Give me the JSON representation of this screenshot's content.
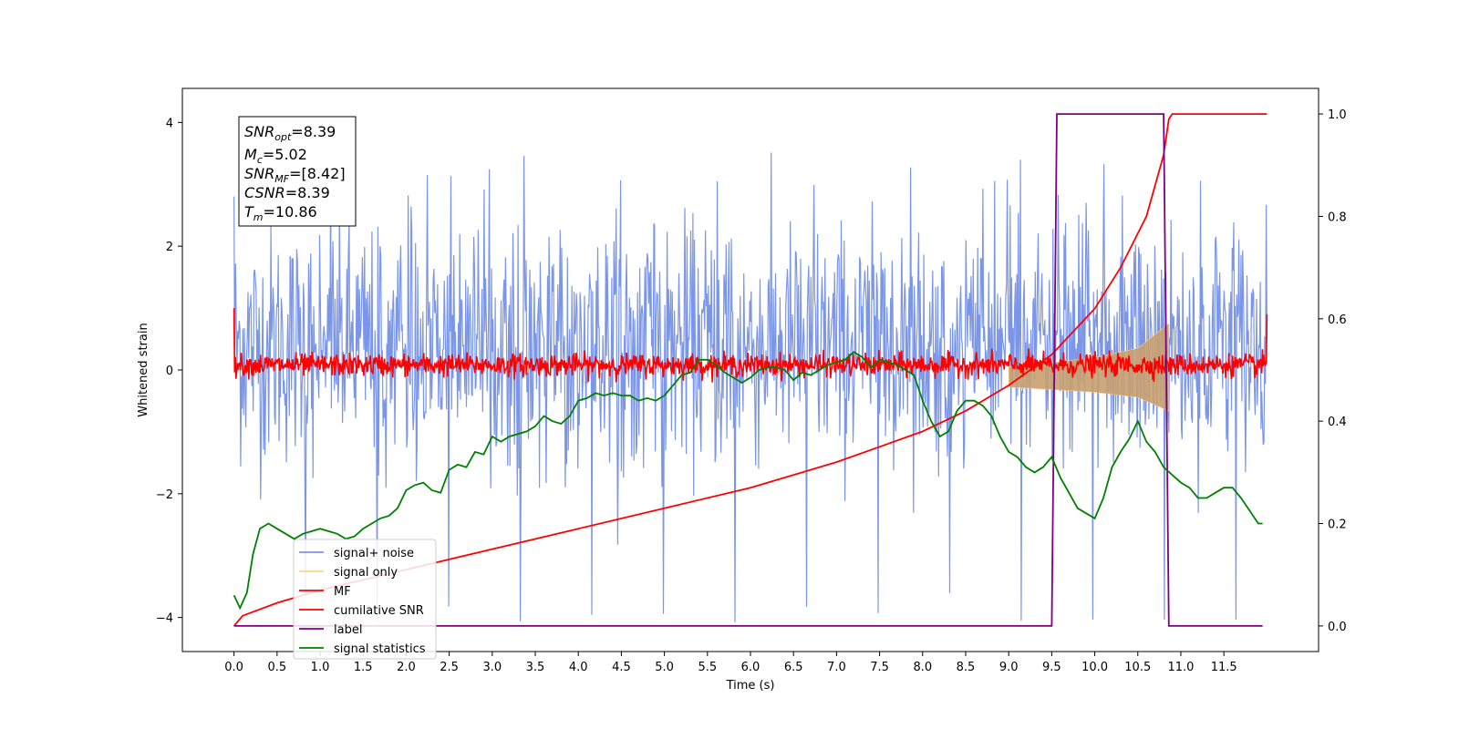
{
  "chart_data": {
    "type": "line",
    "xlabel": "Time (s)",
    "ylabel": "Whitened strain",
    "xlim": [
      -0.6,
      12.6
    ],
    "ylim": [
      -4.55,
      4.55
    ],
    "y2lim": [
      -0.05,
      1.05
    ],
    "x_ticks": [
      0.0,
      0.5,
      1.0,
      1.5,
      2.0,
      2.5,
      3.0,
      3.5,
      4.0,
      4.5,
      5.0,
      5.5,
      6.0,
      6.5,
      7.0,
      7.5,
      8.0,
      8.5,
      9.0,
      9.5,
      10.0,
      10.5,
      11.0,
      11.5
    ],
    "x_tick_labels": [
      "0.0",
      "0.5",
      "1.0",
      "1.5",
      "2.0",
      "2.5",
      "3.0",
      "3.5",
      "4.0",
      "4.5",
      "5.0",
      "5.5",
      "6.0",
      "6.5",
      "7.0",
      "7.5",
      "8.0",
      "8.5",
      "9.0",
      "9.5",
      "10.0",
      "10.5",
      "11.0",
      "11.5"
    ],
    "y_ticks": [
      -4,
      -2,
      0,
      2,
      4
    ],
    "y_tick_labels": [
      "−4",
      "−2",
      "0",
      "2",
      "4"
    ],
    "y2_ticks": [
      0.0,
      0.2,
      0.4,
      0.6,
      0.8,
      1.0
    ],
    "y2_tick_labels": [
      "0.0",
      "0.2",
      "0.4",
      "0.6",
      "0.8",
      "1.0"
    ],
    "grid": false,
    "legend_position": "lower-left",
    "stats_box": {
      "snr_opt": "=8.39",
      "mc": "=5.02",
      "snr_mf": "=[8.42]",
      "csnr": "=8.39",
      "tm": "=10.86"
    },
    "series": [
      {
        "name": "signal+ noise",
        "axis": "left",
        "color": "#7b96e8",
        "kind": "noise",
        "x_range": [
          0.0,
          12.0
        ],
        "amplitude_range": [
          -4.1,
          3.6
        ],
        "typical_band": [
          -2.0,
          2.8
        ]
      },
      {
        "name": "signal only",
        "axis": "left",
        "color": "#ffcc80",
        "kind": "chirp",
        "x_range": [
          9.0,
          10.86
        ],
        "envelope": [
          [
            9.0,
            0.05
          ],
          [
            9.5,
            0.12
          ],
          [
            10.0,
            0.2
          ],
          [
            10.5,
            0.35
          ],
          [
            10.86,
            0.75
          ]
        ]
      },
      {
        "name": "MF",
        "axis": "left",
        "color": "#ff0000",
        "kind": "noise",
        "x_range": [
          0.0,
          12.0
        ],
        "amplitude_range": [
          -0.2,
          0.45
        ],
        "edge_values": [
          1.0,
          0.9
        ]
      },
      {
        "name": "cumilative SNR",
        "axis": "right",
        "color": "#ff0000",
        "x": [
          0.0,
          0.1,
          0.5,
          1.0,
          2.0,
          3.0,
          4.0,
          5.0,
          6.0,
          7.0,
          7.5,
          8.0,
          8.5,
          9.0,
          9.5,
          10.0,
          10.3,
          10.6,
          10.8,
          10.86,
          10.9,
          12.0
        ],
        "y": [
          0.0,
          0.02,
          0.045,
          0.07,
          0.11,
          0.15,
          0.19,
          0.23,
          0.27,
          0.32,
          0.35,
          0.38,
          0.42,
          0.47,
          0.53,
          0.62,
          0.7,
          0.8,
          0.92,
          0.99,
          1.0,
          1.0
        ]
      },
      {
        "name": "label",
        "axis": "right",
        "color": "#7f007f",
        "x": [
          0.0,
          9.5,
          9.56,
          10.8,
          10.86,
          11.95
        ],
        "y": [
          0.0,
          0.0,
          1.0,
          1.0,
          0.0,
          0.0
        ]
      },
      {
        "name": "signal statistics",
        "axis": "right",
        "color": "#008000",
        "x": [
          0.0,
          0.07,
          0.15,
          0.22,
          0.3,
          0.4,
          0.5,
          0.6,
          0.7,
          0.8,
          0.9,
          1.0,
          1.1,
          1.2,
          1.3,
          1.4,
          1.5,
          1.6,
          1.7,
          1.8,
          1.9,
          2.0,
          2.1,
          2.2,
          2.3,
          2.4,
          2.5,
          2.6,
          2.7,
          2.8,
          2.9,
          3.0,
          3.1,
          3.2,
          3.3,
          3.4,
          3.5,
          3.6,
          3.7,
          3.8,
          3.9,
          4.0,
          4.1,
          4.2,
          4.3,
          4.4,
          4.5,
          4.6,
          4.7,
          4.8,
          4.9,
          5.0,
          5.1,
          5.2,
          5.3,
          5.4,
          5.5,
          5.6,
          5.7,
          5.8,
          5.9,
          6.0,
          6.1,
          6.2,
          6.3,
          6.4,
          6.5,
          6.6,
          6.7,
          6.8,
          6.9,
          7.0,
          7.1,
          7.2,
          7.3,
          7.4,
          7.5,
          7.6,
          7.7,
          7.8,
          7.9,
          8.0,
          8.1,
          8.2,
          8.3,
          8.4,
          8.5,
          8.6,
          8.7,
          8.8,
          8.9,
          9.0,
          9.1,
          9.2,
          9.3,
          9.4,
          9.5,
          9.6,
          9.7,
          9.8,
          9.9,
          10.0,
          10.1,
          10.2,
          10.3,
          10.4,
          10.5,
          10.6,
          10.7,
          10.8,
          10.9,
          11.0,
          11.1,
          11.2,
          11.3,
          11.4,
          11.5,
          11.6,
          11.7,
          11.8,
          11.9,
          11.95
        ],
        "y": [
          0.06,
          0.035,
          0.065,
          0.14,
          0.19,
          0.2,
          0.19,
          0.18,
          0.17,
          0.18,
          0.185,
          0.19,
          0.185,
          0.18,
          0.17,
          0.175,
          0.19,
          0.2,
          0.21,
          0.215,
          0.23,
          0.265,
          0.275,
          0.28,
          0.265,
          0.26,
          0.305,
          0.315,
          0.31,
          0.34,
          0.335,
          0.37,
          0.36,
          0.37,
          0.375,
          0.38,
          0.39,
          0.41,
          0.4,
          0.395,
          0.41,
          0.44,
          0.445,
          0.455,
          0.45,
          0.455,
          0.45,
          0.45,
          0.44,
          0.445,
          0.44,
          0.45,
          0.47,
          0.49,
          0.495,
          0.52,
          0.52,
          0.51,
          0.495,
          0.485,
          0.475,
          0.485,
          0.5,
          0.505,
          0.505,
          0.5,
          0.48,
          0.495,
          0.49,
          0.5,
          0.51,
          0.515,
          0.52,
          0.535,
          0.525,
          0.505,
          0.52,
          0.515,
          0.51,
          0.5,
          0.49,
          0.44,
          0.4,
          0.37,
          0.38,
          0.42,
          0.44,
          0.44,
          0.43,
          0.41,
          0.37,
          0.34,
          0.33,
          0.31,
          0.3,
          0.31,
          0.33,
          0.29,
          0.26,
          0.23,
          0.22,
          0.21,
          0.25,
          0.31,
          0.34,
          0.365,
          0.4,
          0.36,
          0.34,
          0.31,
          0.295,
          0.28,
          0.27,
          0.25,
          0.25,
          0.26,
          0.27,
          0.27,
          0.25,
          0.225,
          0.2,
          0.2
        ]
      }
    ]
  }
}
